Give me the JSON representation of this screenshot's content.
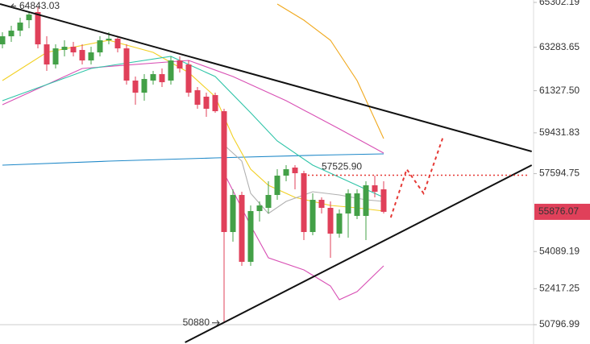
{
  "chart_data": {
    "type": "candlestick",
    "up_color": "#43a047",
    "down_color": "#e0405a",
    "open": [
      63415,
      63778,
      64032,
      64503,
      64866,
      63415,
      62509,
      63162,
      63307,
      63162,
      62690,
      63053,
      63597,
      63669,
      63234,
      61784,
      61240,
      61784,
      62074,
      61784,
      62690,
      62509,
      61349,
      61059,
      61131,
      60406,
      54967,
      56635,
      53625,
      55910,
      56055,
      56635,
      57505,
      57868,
      57614,
      54967,
      56417,
      56055,
      54894,
      55801,
      55692,
      55692,
      57070,
      56889
    ],
    "close": [
      63778,
      64032,
      64395,
      64757,
      63415,
      62509,
      63234,
      63307,
      63053,
      62690,
      63053,
      63597,
      63669,
      63234,
      61784,
      61240,
      61856,
      62074,
      61711,
      62690,
      62328,
      61240,
      60696,
      60515,
      60406,
      54967,
      56635,
      53625,
      55910,
      56163,
      56635,
      57505,
      57795,
      57614,
      54967,
      56417,
      56055,
      54894,
      55801,
      56707,
      56707,
      57070,
      56780,
      55876.07
    ],
    "high": [
      63959,
      64249,
      64612,
      64843.03,
      65120,
      63778,
      63415,
      63597,
      63524,
      63415,
      63307,
      63778,
      63959,
      63778,
      63415,
      61965,
      62074,
      62219,
      62328,
      62872,
      62872,
      62690,
      61494,
      61240,
      61240,
      60515,
      56889,
      56780,
      56163,
      56345,
      57251,
      57795,
      57976,
      57976,
      57723,
      56707,
      56526,
      56345,
      55982,
      56889,
      56889,
      57251,
      57505,
      57251
    ],
    "low": [
      63234,
      63524,
      63778,
      64141,
      63234,
      62219,
      62328,
      62872,
      62872,
      62509,
      62509,
      62872,
      63415,
      63053,
      61602,
      60696,
      60877,
      61602,
      61494,
      61602,
      62146,
      61059,
      60515,
      60152,
      60333,
      50880,
      54532,
      53444,
      53444,
      55438,
      55801,
      56417,
      57251,
      56889,
      54604,
      54822,
      55801,
      53807,
      54713,
      54713,
      55547,
      54604,
      56526,
      55801
    ],
    "last_label": "55876.07",
    "level": {
      "value": 57525.9,
      "label": "57525.90",
      "color": "#e53935"
    },
    "lines": [
      {
        "color": "#1e88c8",
        "x": [
          0,
          12,
          24,
          36,
          43
        ],
        "values": [
          57976,
          58158,
          58303,
          58430,
          58484
        ]
      },
      {
        "color": "#d84fb4",
        "x": [
          0,
          9,
          21,
          26,
          32,
          38,
          43
        ],
        "values": [
          60696,
          62328,
          62690,
          61965,
          60877,
          59608,
          58521
        ]
      },
      {
        "color": "#d84fb4",
        "x": [
          25,
          28,
          30,
          34,
          37,
          38,
          40,
          43
        ],
        "values": [
          57614,
          55257,
          53807,
          53263,
          52538,
          51921,
          52284,
          53444
        ]
      },
      {
        "color": "#f0a81c",
        "x": [
          31,
          34,
          37,
          40,
          43
        ],
        "values": [
          65229,
          64503,
          63597,
          61784,
          59173
        ]
      },
      {
        "color": "#f2d024",
        "x": [
          0,
          5,
          12,
          17,
          21,
          24,
          26,
          28,
          30,
          33,
          37,
          40,
          43
        ],
        "values": [
          61784,
          63053,
          63597,
          63053,
          62146,
          61059,
          59246,
          57795,
          57070,
          56526,
          56163,
          56055,
          55910
        ]
      },
      {
        "color": "#2fc4a8",
        "x": [
          0,
          10,
          19,
          24,
          28,
          31,
          35,
          39,
          43
        ],
        "values": [
          60877,
          62328,
          62872,
          61965,
          60333,
          59064,
          57976,
          57251,
          56526
        ]
      },
      {
        "color": "#b0b0b0",
        "x": [
          25,
          27,
          28,
          30,
          32,
          35,
          38,
          41,
          43
        ],
        "values": [
          58883,
          58158,
          56707,
          55801,
          56345,
          56780,
          56635,
          56417,
          56345
        ]
      }
    ],
    "trendlines": [
      {
        "color": "#111111",
        "x": [
          -0.27,
          59.7
        ],
        "values": [
          65229,
          58593
        ]
      },
      {
        "color": "#111111",
        "x": [
          20.6,
          59.7
        ],
        "values": [
          50000,
          57976
        ]
      }
    ],
    "forecast": {
      "color": "#e53935",
      "x": [
        43.8,
        45.6,
        47.5,
        49.7
      ],
      "values": [
        55620,
        57795,
        56707,
        59246
      ]
    },
    "ylim": [
      50796.99,
      65302.19
    ],
    "yticks": [
      65302.19,
      63283.65,
      {
        "value": 61327.5,
        "label": "61327.50"
      },
      59431.83,
      57594.75,
      54089.19,
      52417.25,
      50796.99
    ]
  }
}
